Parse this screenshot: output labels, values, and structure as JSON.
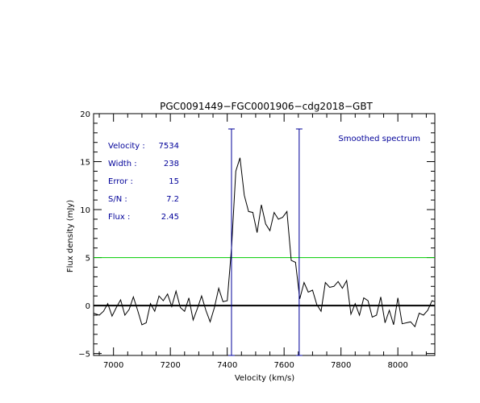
{
  "chart_data": {
    "type": "line",
    "title": "PGC0091449−FGC0001906−cdg2018−GBT",
    "xlabel": "Velocity (km/s)",
    "ylabel": "Flux density (mJy)",
    "xlim": [
      6930,
      8130
    ],
    "ylim": [
      -5.2,
      20
    ],
    "x_ticks": [
      7000,
      7200,
      7400,
      7600,
      7800,
      8000
    ],
    "x_tick_labels": [
      "7000",
      "7200",
      "7400",
      "7600",
      "7800",
      "8000"
    ],
    "y_ticks": [
      -5,
      0,
      5,
      10,
      15,
      20
    ],
    "y_tick_labels": [
      "−5",
      "0",
      "5",
      "10",
      "15",
      "20"
    ],
    "grid": false,
    "legend_text": "Smoothed spectrum",
    "stats": [
      {
        "label": "Velocity :",
        "value": "7534"
      },
      {
        "label": "Width :",
        "value": "238"
      },
      {
        "label": "Error :",
        "value": "15"
      },
      {
        "label": "S/N :",
        "value": "7.2"
      },
      {
        "label": "Flux :",
        "value": "2.45"
      }
    ],
    "zero_line": 0,
    "threshold_line": 5,
    "markers": [
      7415,
      7653
    ],
    "spectrum": {
      "x": [
        6930,
        6950,
        6965,
        6980,
        6995,
        7010,
        7025,
        7040,
        7055,
        7070,
        7085,
        7100,
        7115,
        7130,
        7145,
        7160,
        7175,
        7190,
        7205,
        7220,
        7235,
        7250,
        7265,
        7280,
        7295,
        7310,
        7325,
        7340,
        7355,
        7370,
        7385,
        7400,
        7415,
        7430,
        7445,
        7460,
        7475,
        7490,
        7505,
        7520,
        7535,
        7550,
        7565,
        7580,
        7595,
        7610,
        7625,
        7640,
        7655,
        7670,
        7685,
        7700,
        7715,
        7730,
        7745,
        7760,
        7775,
        7790,
        7805,
        7820,
        7835,
        7850,
        7865,
        7880,
        7895,
        7910,
        7925,
        7940,
        7955,
        7970,
        7985,
        8000,
        8015,
        8030,
        8045,
        8060,
        8075,
        8090,
        8105,
        8120,
        8130
      ],
      "y": [
        -0.8,
        -1.0,
        -0.6,
        0.2,
        -1.1,
        -0.2,
        0.6,
        -1.0,
        -0.4,
        0.9,
        -0.5,
        -2.0,
        -1.8,
        0.2,
        -0.6,
        1.0,
        0.5,
        1.2,
        -0.1,
        1.5,
        -0.2,
        -0.6,
        0.8,
        -1.5,
        -0.3,
        1.0,
        -0.5,
        -1.7,
        -0.2,
        1.8,
        0.4,
        0.5,
        6.0,
        14.0,
        15.4,
        11.5,
        9.8,
        9.7,
        7.6,
        10.5,
        8.5,
        7.8,
        9.7,
        9.0,
        9.2,
        9.8,
        4.7,
        4.5,
        0.7,
        2.4,
        1.4,
        1.6,
        0.1,
        -0.6,
        2.4,
        1.9,
        2.0,
        2.5,
        1.8,
        2.6,
        -0.9,
        0.2,
        -1.0,
        0.8,
        0.5,
        -1.2,
        -1.0,
        0.9,
        -1.8,
        -0.5,
        -2.0,
        0.8,
        -1.9,
        -1.8,
        -1.7,
        -2.2,
        -0.8,
        -1.0,
        -0.5,
        0.5,
        0.4
      ]
    },
    "colors": {
      "spectrum": "#000000",
      "zero_line": "#000000",
      "threshold_line": "#00cc00",
      "markers": "#000099",
      "annotation_text": "#000099",
      "axes": "#000000"
    }
  }
}
